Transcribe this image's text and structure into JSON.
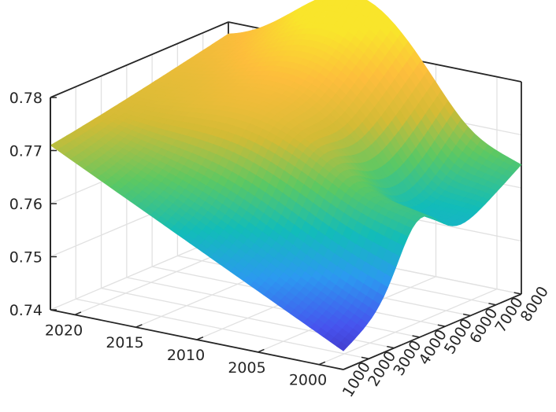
{
  "chart_data": {
    "type": "surface",
    "title": "",
    "xlabel": "",
    "ylabel": "",
    "zlabel": "",
    "x_axis": {
      "ticks": [
        2000,
        2005,
        2010,
        2015,
        2020
      ],
      "range": [
        1998,
        2022
      ]
    },
    "y_axis": {
      "ticks": [
        1000,
        2000,
        3000,
        4000,
        5000,
        6000,
        7000,
        8000
      ],
      "range": [
        1000,
        8000
      ]
    },
    "z_axis": {
      "ticks": [
        0.74,
        0.75,
        0.76,
        0.77,
        0.78
      ],
      "range": [
        0.74,
        0.78
      ]
    },
    "grid": true,
    "colormap": [
      "#3e26a8",
      "#4753ee",
      "#2c99f0",
      "#12bcb9",
      "#5cc863",
      "#d3bb35",
      "#fdbd3c",
      "#f9e52b"
    ],
    "surface_samples": [
      {
        "x": 2000,
        "y": 1000,
        "z": 0.7435
      },
      {
        "x": 2000,
        "y": 8000,
        "z": 0.7635
      },
      {
        "x": 2020,
        "y": 1000,
        "z": 0.771
      },
      {
        "x": 2020,
        "y": 8000,
        "z": 0.775
      },
      {
        "x": 2010,
        "y": 8000,
        "z": 0.784
      },
      {
        "x": 2000,
        "y": 3500,
        "z": 0.756
      },
      {
        "x": 2000,
        "y": 5500,
        "z": 0.762
      }
    ]
  }
}
